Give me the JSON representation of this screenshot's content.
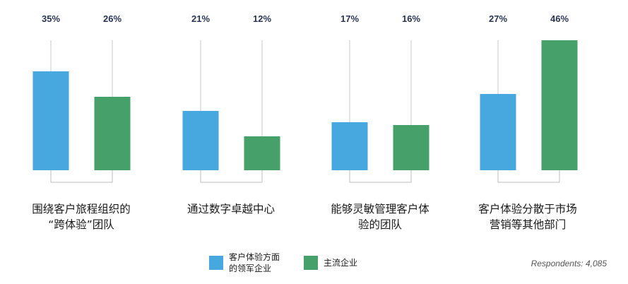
{
  "chart_data": {
    "type": "bar",
    "categories": [
      "围绕客户旅程组织的\n“跨体验”团队",
      "通过数字卓越中心",
      "能够灵敏管理客户体\n验的团队",
      "客户体验分散于市场\n营销等其他部门"
    ],
    "series": [
      {
        "name": "客户体验方面\n的领军企业",
        "values": [
          35,
          21,
          17,
          27
        ],
        "labels": [
          "35%",
          "21%",
          "17%",
          "27%"
        ]
      },
      {
        "name": "主流企业",
        "values": [
          26,
          12,
          16,
          46
        ],
        "labels": [
          "26%",
          "12%",
          "16%",
          "46%"
        ]
      }
    ],
    "ylim": [
      0,
      50
    ],
    "colors": [
      "#46a8de",
      "#45a06a"
    ],
    "grid": false,
    "legend_position": "bottom"
  },
  "note": "Respondents: 4,085"
}
